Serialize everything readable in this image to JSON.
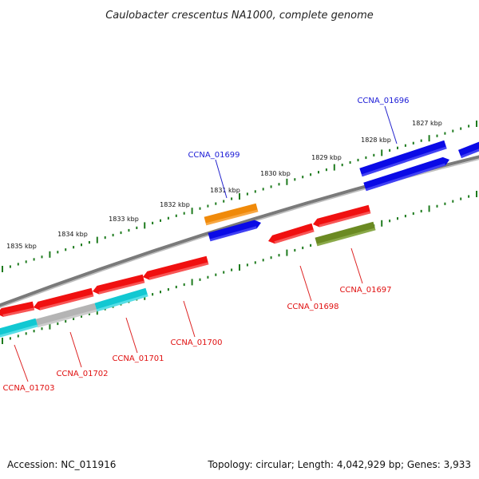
{
  "title": "Caulobacter crescentus NA1000, complete genome",
  "accession": "Accession: NC_011916",
  "summary": "Topology: circular; Length: 4,042,929 bp; Genes: 3,933",
  "colors": {
    "backbone": "#7a7a7a",
    "tick": "#1e7b1e",
    "label_forward": "#1a1ad6",
    "label_reverse": "#e01010",
    "cds_forward": "#0a0ae6",
    "cds_reverse": "#f01010",
    "orange": "#f08a0a",
    "olive": "#6b8a22",
    "cyan": "#12c8d2",
    "gray": "#b4b4b4"
  },
  "tick_labels": [
    "1827 kbp",
    "1828 kbp",
    "1829 kbp",
    "1830 kbp",
    "1831 kbp",
    "1832 kbp",
    "1833 kbp",
    "1834 kbp",
    "1835 kbp"
  ],
  "gene_labels": [
    {
      "text": "CCNA_01696",
      "strand": "forward"
    },
    {
      "text": "CCNA_01699",
      "strand": "forward"
    },
    {
      "text": "CCNA_01697",
      "strand": "reverse"
    },
    {
      "text": "CCNA_01698",
      "strand": "reverse"
    },
    {
      "text": "CCNA_01700",
      "strand": "reverse"
    },
    {
      "text": "CCNA_01701",
      "strand": "reverse"
    },
    {
      "text": "CCNA_01702",
      "strand": "reverse"
    },
    {
      "text": "CCNA_01703",
      "strand": "reverse"
    }
  ]
}
